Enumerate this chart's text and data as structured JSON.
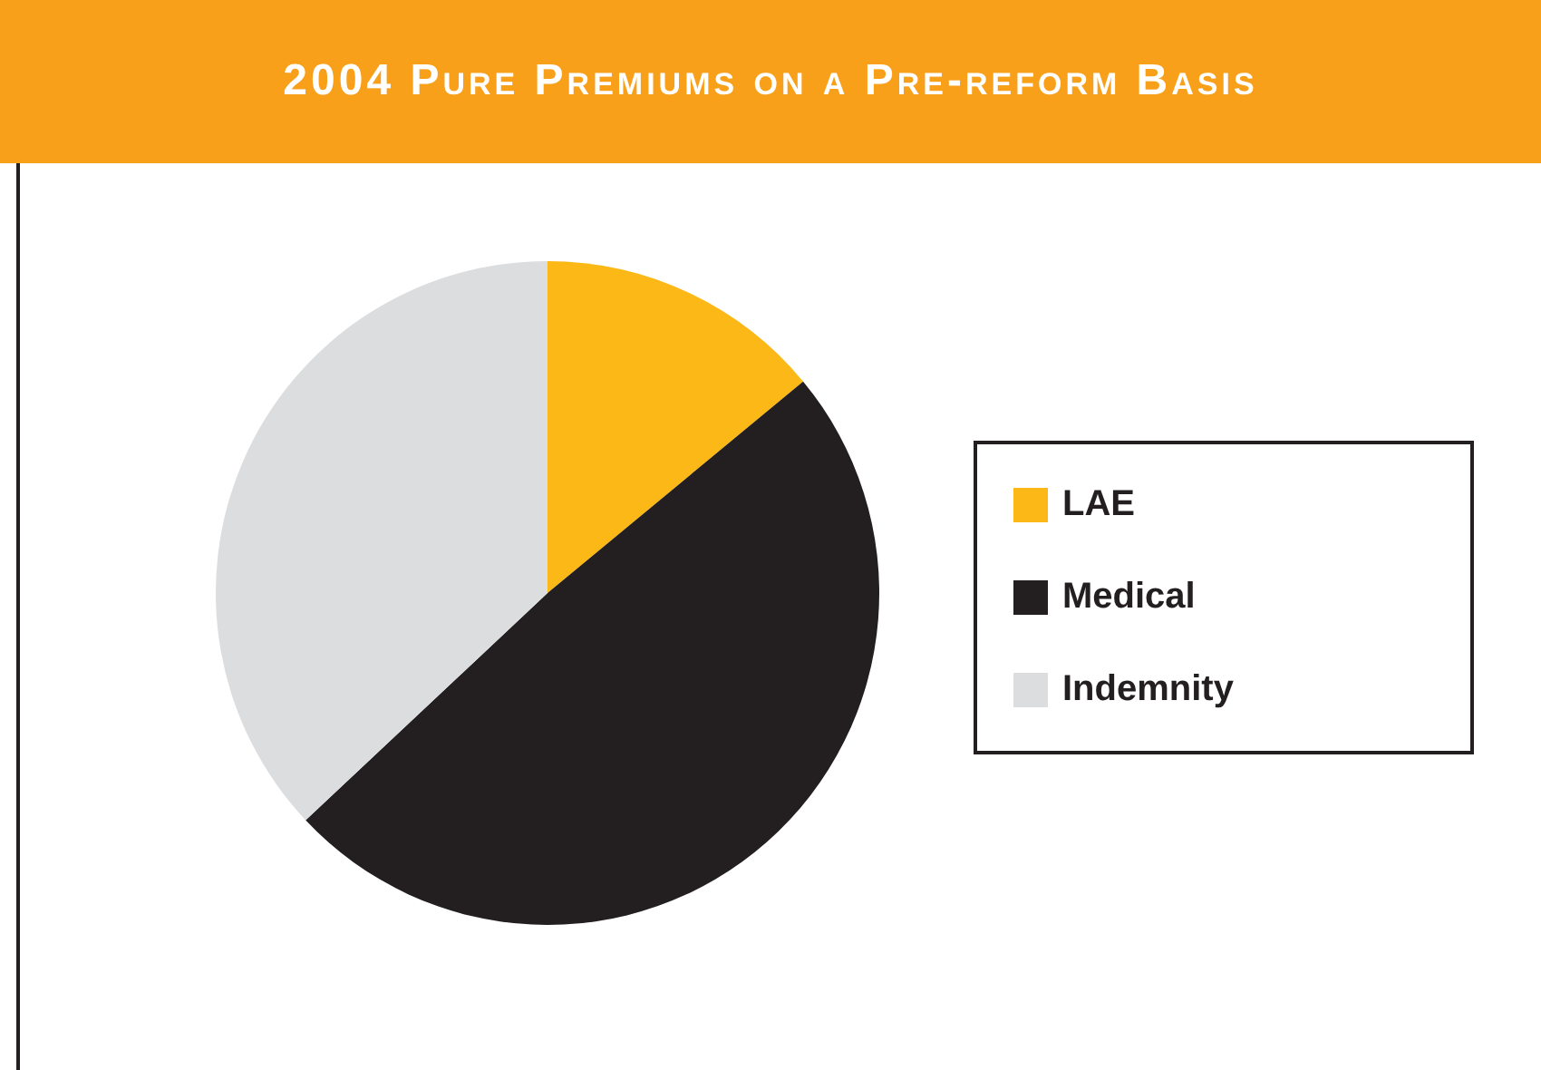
{
  "chart_data": {
    "type": "pie",
    "title": "2004 Pure Premiums on a Pre-reform Basis",
    "categories": [
      "LAE",
      "Medical",
      "Indemnity"
    ],
    "values": [
      14,
      49,
      37
    ],
    "colors": [
      "#fbb816",
      "#231f20",
      "#dcdddf"
    ],
    "legend": "right"
  }
}
